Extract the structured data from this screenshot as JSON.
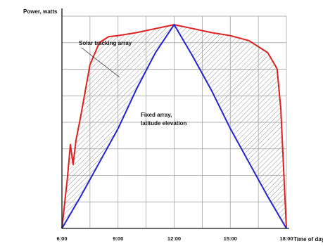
{
  "chart_data": {
    "type": "line",
    "ylabel": "Power, watts",
    "xlabel": "Time of day",
    "x_ticks": [
      "6:00",
      "9:00",
      "12:00",
      "15:00",
      "18:00"
    ],
    "xlim": [
      6,
      18
    ],
    "ylim": [
      0,
      1.08
    ],
    "y_grid_lines": 8,
    "grid": true,
    "shaded_region": "between series (hatched)",
    "annotations": [
      {
        "text": "Solar tracking array",
        "series": "Solar tracking array"
      },
      {
        "text": "Fixed array,",
        "series": "Fixed array, latitude elevation"
      },
      {
        "text": "latitude elevation",
        "series": "Fixed array, latitude elevation"
      }
    ],
    "series": [
      {
        "name": "Solar tracking array",
        "color": "#e02020",
        "x": [
          6.0,
          6.3,
          6.45,
          6.6,
          6.75,
          7.0,
          7.5,
          8.0,
          8.5,
          9.0,
          10.0,
          11.0,
          12.0,
          13.0,
          14.0,
          15.0,
          16.0,
          17.0,
          17.5,
          17.7,
          17.85,
          18.0
        ],
        "y": [
          0.0,
          0.26,
          0.42,
          0.32,
          0.44,
          0.56,
          0.82,
          0.93,
          0.96,
          0.965,
          0.98,
          1.0,
          1.02,
          1.0,
          0.98,
          0.965,
          0.94,
          0.88,
          0.8,
          0.6,
          0.3,
          0.0
        ]
      },
      {
        "name": "Fixed array, latitude elevation",
        "color": "#2424cc",
        "x": [
          6.0,
          7.0,
          8.0,
          9.0,
          10.0,
          11.0,
          12.0,
          13.0,
          14.0,
          15.0,
          16.0,
          17.0,
          18.0
        ],
        "y": [
          0.0,
          0.16,
          0.33,
          0.5,
          0.7,
          0.88,
          1.02,
          0.86,
          0.69,
          0.5,
          0.33,
          0.16,
          0.0
        ]
      }
    ]
  }
}
